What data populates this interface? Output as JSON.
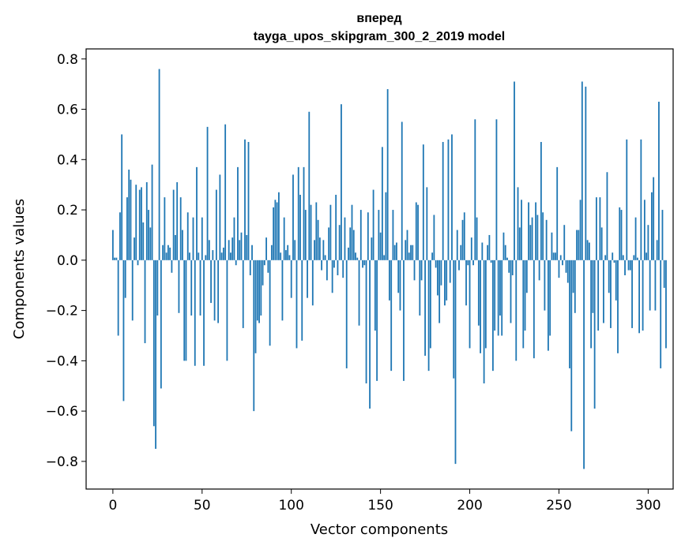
{
  "chart_data": {
    "type": "bar",
    "title": "вперед",
    "subtitle": "tayga_upos_skipgram_300_2_2019 model",
    "xlabel": "Vector components",
    "ylabel": "Components values",
    "xlim": [
      -15,
      314
    ],
    "ylim": [
      -0.91,
      0.84
    ],
    "xticks": [
      0,
      50,
      100,
      150,
      200,
      250,
      300
    ],
    "xtick_labels": [
      "0",
      "50",
      "100",
      "150",
      "200",
      "250",
      "300"
    ],
    "yticks": [
      -0.8,
      -0.6,
      -0.4,
      -0.2,
      0.0,
      0.2,
      0.4,
      0.6,
      0.8
    ],
    "ytick_labels": [
      "−0.8",
      "−0.6",
      "−0.4",
      "−0.2",
      "0.0",
      "0.2",
      "0.4",
      "0.6",
      "0.8"
    ],
    "grid": false,
    "bar_color": "#1f77b4",
    "series": [
      {
        "values": [
          0.12,
          0.01,
          0.01,
          -0.3,
          0.19,
          0.5,
          -0.56,
          -0.15,
          0.25,
          0.36,
          0.32,
          -0.24,
          0.09,
          0.3,
          -0.02,
          0.28,
          0.29,
          0.15,
          -0.33,
          0.31,
          0.2,
          0.13,
          0.38,
          -0.66,
          -0.75,
          -0.22,
          0.76,
          -0.51,
          0.06,
          0.25,
          0.03,
          0.06,
          0.05,
          -0.05,
          0.28,
          0.1,
          0.31,
          -0.21,
          0.25,
          0.12,
          -0.4,
          -0.4,
          0.19,
          0.03,
          -0.22,
          0.17,
          -0.42,
          0.37,
          0.03,
          -0.22,
          0.17,
          -0.42,
          0.02,
          0.53,
          0.08,
          -0.17,
          0.04,
          -0.24,
          0.28,
          -0.25,
          0.34,
          0.03,
          0.05,
          0.54,
          -0.4,
          0.08,
          0.03,
          0.09,
          0.17,
          -0.02,
          0.37,
          0.08,
          0.11,
          -0.27,
          0.48,
          0.1,
          0.47,
          -0.06,
          0.06,
          -0.6,
          -0.37,
          -0.24,
          -0.25,
          -0.22,
          -0.1,
          -0.02,
          0.09,
          -0.05,
          -0.34,
          0.06,
          0.21,
          0.24,
          0.23,
          0.27,
          0.03,
          -0.24,
          0.17,
          0.04,
          0.06,
          0.02,
          -0.15,
          0.34,
          0.08,
          -0.35,
          0.37,
          0.26,
          -0.32,
          0.37,
          0.2,
          -0.15,
          0.59,
          0.22,
          -0.18,
          0.08,
          0.23,
          0.16,
          0.09,
          -0.04,
          0.08,
          0.02,
          -0.08,
          0.13,
          0.22,
          -0.13,
          -0.03,
          0.26,
          -0.06,
          0.14,
          0.62,
          -0.07,
          0.17,
          -0.43,
          0.05,
          0.13,
          0.22,
          0.12,
          0.03,
          0.01,
          -0.26,
          0.2,
          -0.03,
          -0.02,
          -0.49,
          0.19,
          -0.59,
          0.09,
          0.28,
          -0.28,
          -0.48,
          0.2,
          0.11,
          0.45,
          0.02,
          0.27,
          0.68,
          -0.16,
          -0.44,
          0.2,
          0.06,
          0.07,
          -0.13,
          -0.2,
          0.55,
          -0.48,
          0.08,
          0.12,
          0.03,
          0.06,
          0.06,
          -0.08,
          0.23,
          0.22,
          -0.22,
          -0.08,
          0.46,
          -0.38,
          0.29,
          -0.44,
          -0.35,
          0.03,
          0.18,
          -0.03,
          -0.14,
          -0.25,
          -0.1,
          0.47,
          -0.18,
          -0.16,
          0.48,
          -0.09,
          0.5,
          -0.47,
          -0.81,
          0.12,
          -0.04,
          0.06,
          0.16,
          0.19,
          -0.18,
          -0.02,
          -0.35,
          0.09,
          -0.02,
          0.56,
          0.17,
          -0.26,
          -0.37,
          0.07,
          -0.49,
          -0.35,
          0.06,
          0.1,
          -0.01,
          -0.44,
          -0.28,
          0.56,
          -0.3,
          -0.22,
          -0.3,
          0.11,
          0.06,
          0.01,
          -0.05,
          -0.25,
          -0.06,
          0.71,
          -0.4,
          0.29,
          0.13,
          0.24,
          -0.35,
          -0.28,
          -0.13,
          0.23,
          0.14,
          0.17,
          -0.39,
          0.23,
          0.18,
          -0.08,
          0.47,
          0.19,
          -0.2,
          0.16,
          -0.36,
          -0.3,
          0.11,
          0.03,
          0.03,
          0.37,
          -0.07,
          0.02,
          -0.02,
          0.14,
          -0.05,
          -0.09,
          -0.43,
          -0.68,
          -0.13,
          -0.21,
          0.12,
          0.12,
          0.24,
          0.71,
          -0.83,
          0.69,
          0.08,
          0.07,
          -0.35,
          -0.21,
          -0.59,
          0.25,
          -0.28,
          0.25,
          0.13,
          -0.25,
          0.02,
          0.35,
          -0.13,
          -0.27,
          0.03,
          -0.01,
          -0.16,
          -0.37,
          0.21,
          0.2,
          0.02,
          -0.06,
          0.48,
          -0.04,
          -0.04,
          -0.27,
          0.02,
          0.17,
          0.01,
          -0.29,
          0.48,
          -0.28,
          0.24,
          0.03,
          0.14,
          -0.2,
          0.27,
          0.33,
          -0.2,
          0.08,
          0.63,
          -0.43,
          0.2,
          -0.11,
          -0.35
        ]
      }
    ]
  }
}
